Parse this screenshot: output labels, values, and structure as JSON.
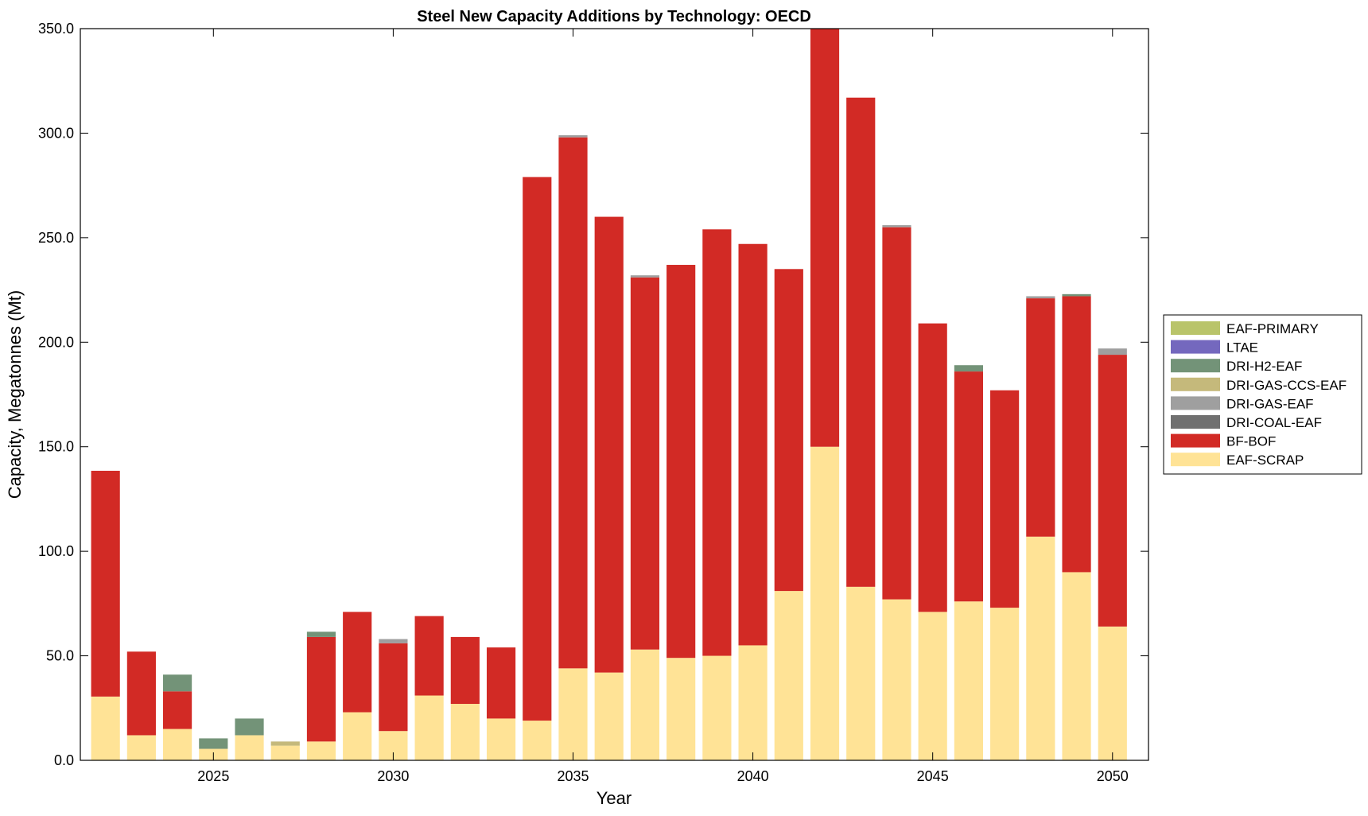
{
  "chart_data": {
    "type": "bar",
    "stacked": true,
    "title": "Steel New Capacity Additions by Technology: OECD",
    "xlabel": "Year",
    "ylabel": "Capacity, Megatonnes (Mt)",
    "xlim": [
      2021.3,
      2051.0
    ],
    "ylim": [
      0,
      350
    ],
    "xticks": [
      2025,
      2030,
      2035,
      2040,
      2045,
      2050
    ],
    "yticks": [
      0,
      50,
      100,
      150,
      200,
      250,
      300,
      350
    ],
    "ytick_labels": [
      "0.0",
      "50.0",
      "100.0",
      "150.0",
      "200.0",
      "250.0",
      "300.0",
      "350.0"
    ],
    "legend_position": "outside-right",
    "grid": false,
    "categories": [
      2022,
      2023,
      2024,
      2025,
      2026,
      2027,
      2028,
      2029,
      2030,
      2031,
      2032,
      2033,
      2034,
      2035,
      2036,
      2037,
      2038,
      2039,
      2040,
      2041,
      2042,
      2043,
      2044,
      2045,
      2046,
      2047,
      2048,
      2049,
      2050
    ],
    "series": [
      {
        "name": "EAF-SCRAP",
        "color": "#FFE396",
        "values": [
          30.5,
          12,
          15,
          5.5,
          12,
          7,
          9,
          23,
          14,
          31,
          27,
          20,
          19,
          44,
          42,
          53,
          49,
          50,
          55,
          81,
          150,
          83,
          77,
          71,
          76,
          73,
          107,
          90,
          64
        ]
      },
      {
        "name": "BF-BOF",
        "color": "#D22A25",
        "values": [
          108,
          40,
          18,
          0,
          0,
          0,
          50,
          48,
          42,
          38,
          32,
          34,
          260,
          254,
          218,
          178,
          188,
          204,
          192,
          154,
          200,
          234,
          178,
          138,
          110,
          104,
          114,
          132,
          130
        ]
      },
      {
        "name": "DRI-COAL-EAF",
        "color": "#707070",
        "values": [
          0,
          0,
          0,
          0,
          0,
          0,
          0,
          0,
          0,
          0,
          0,
          0,
          0,
          0,
          0,
          0,
          0,
          0,
          0,
          0,
          0,
          0,
          0,
          0,
          0,
          0,
          0,
          0,
          0
        ]
      },
      {
        "name": "DRI-GAS-EAF",
        "color": "#9F9F9F",
        "values": [
          0,
          0,
          0,
          0,
          0,
          0,
          0,
          0,
          2,
          0,
          0,
          0,
          0,
          1,
          0,
          1,
          0,
          0,
          0,
          0,
          0,
          0,
          1,
          0,
          0,
          0,
          1,
          0,
          3
        ]
      },
      {
        "name": "DRI-GAS-CCS-EAF",
        "color": "#C5B97B",
        "values": [
          0,
          0,
          0,
          0,
          0,
          2,
          0,
          0,
          0,
          0,
          0,
          0,
          0,
          0,
          0,
          0,
          0,
          0,
          0,
          0,
          0,
          0,
          0,
          0,
          0,
          0,
          0,
          0,
          0
        ]
      },
      {
        "name": "DRI-H2-EAF",
        "color": "#739378",
        "values": [
          0,
          0,
          8,
          5,
          8,
          0,
          2.5,
          0,
          0,
          0,
          0,
          0,
          0,
          0,
          0,
          0,
          0,
          0,
          0,
          0,
          0,
          0,
          0,
          0,
          3,
          0,
          0,
          1,
          0
        ]
      },
      {
        "name": "LTAE",
        "color": "#7468BE",
        "values": [
          0,
          0,
          0,
          0,
          0,
          0,
          0,
          0,
          0,
          0,
          0,
          0,
          0,
          0,
          0,
          0,
          0,
          0,
          0,
          0,
          0,
          0,
          0,
          0,
          0,
          0,
          0,
          0,
          0
        ]
      },
      {
        "name": "EAF-PRIMARY",
        "color": "#B9C46A",
        "values": [
          0,
          0,
          0,
          0,
          0,
          0,
          0,
          0,
          0,
          0,
          0,
          0,
          0,
          0,
          0,
          0,
          0,
          0,
          0,
          0,
          0,
          0,
          0,
          0,
          0,
          0,
          0,
          0,
          0
        ]
      }
    ],
    "legend_order": [
      "EAF-PRIMARY",
      "LTAE",
      "DRI-H2-EAF",
      "DRI-GAS-CCS-EAF",
      "DRI-GAS-EAF",
      "DRI-COAL-EAF",
      "BF-BOF",
      "EAF-SCRAP"
    ]
  }
}
